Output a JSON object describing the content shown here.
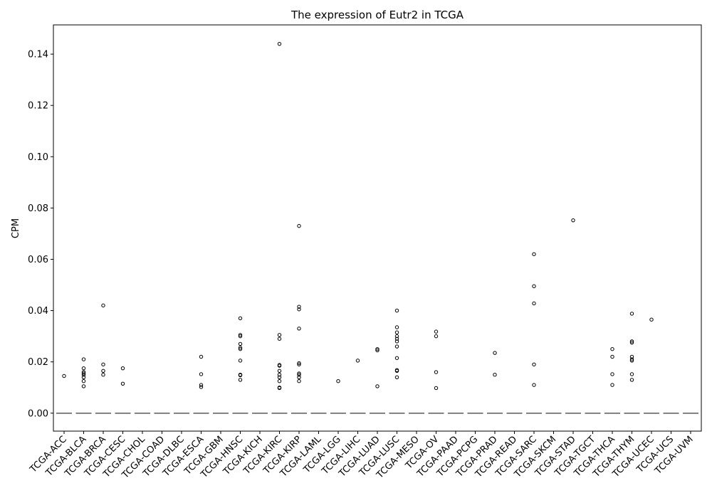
{
  "chart_data": {
    "type": "box",
    "title": "The expression of Eutr2 in TCGA",
    "xlabel": "",
    "ylabel": "CPM",
    "ylim": [
      -0.007,
      0.1514
    ],
    "yticks": [
      0.0,
      0.02,
      0.04,
      0.06,
      0.08,
      0.1,
      0.12,
      0.14
    ],
    "ytick_labels": [
      "0.00",
      "0.02",
      "0.04",
      "0.06",
      "0.08",
      "0.10",
      "0.12",
      "0.14"
    ],
    "grid": false,
    "median_color": "#666666",
    "outlier_color": "#000000",
    "categories": [
      "TCGA-ACC",
      "TCGA-BLCA",
      "TCGA-BRCA",
      "TCGA-CESC",
      "TCGA-CHOL",
      "TCGA-COAD",
      "TCGA-DLBC",
      "TCGA-ESCA",
      "TCGA-GBM",
      "TCGA-HNSC",
      "TCGA-KICH",
      "TCGA-KIRC",
      "TCGA-KIRP",
      "TCGA-LAML",
      "TCGA-LGG",
      "TCGA-LIHC",
      "TCGA-LUAD",
      "TCGA-LUSC",
      "TCGA-MESO",
      "TCGA-OV",
      "TCGA-PAAD",
      "TCGA-PCPG",
      "TCGA-PRAD",
      "TCGA-READ",
      "TCGA-SARC",
      "TCGA-SKCM",
      "TCGA-STAD",
      "TCGA-TGCT",
      "TCGA-THCA",
      "TCGA-THYM",
      "TCGA-UCEC",
      "TCGA-UCS",
      "TCGA-UVM"
    ],
    "medians": [
      0,
      0,
      0,
      0,
      0,
      0,
      0,
      0,
      0,
      0,
      0,
      0,
      0,
      0,
      0,
      0,
      0,
      0,
      0,
      0,
      0,
      0,
      0,
      0,
      0,
      0,
      0,
      0,
      0,
      0,
      0,
      0,
      0
    ],
    "outliers": [
      [
        0.0145
      ],
      [
        0.021,
        0.0175,
        0.016,
        0.0155,
        0.015,
        0.014,
        0.0125,
        0.0105
      ],
      [
        0.042,
        0.019,
        0.0165,
        0.015
      ],
      [
        0.0175,
        0.0115
      ],
      [],
      [],
      [],
      [
        0.022,
        0.0152,
        0.011,
        0.0102
      ],
      [],
      [
        0.037,
        0.0305,
        0.03,
        0.027,
        0.0255,
        0.025,
        0.0205,
        0.015,
        0.0148,
        0.013
      ],
      [],
      [
        0.144,
        0.0305,
        0.029,
        0.0188,
        0.0185,
        0.0165,
        0.015,
        0.014,
        0.0125,
        0.01,
        0.0098
      ],
      [
        0.073,
        0.0415,
        0.0405,
        0.033,
        0.0195,
        0.019,
        0.0155,
        0.015,
        0.014,
        0.0125
      ],
      [],
      [
        0.0125
      ],
      [
        0.0205
      ],
      [
        0.025,
        0.0245,
        0.0105
      ],
      [
        0.04,
        0.0335,
        0.0315,
        0.03,
        0.029,
        0.028,
        0.026,
        0.0215,
        0.0168,
        0.0165,
        0.014
      ],
      [],
      [
        0.0318,
        0.03,
        0.016,
        0.0098
      ],
      [],
      [],
      [
        0.0235,
        0.015
      ],
      [],
      [
        0.062,
        0.0495,
        0.0428,
        0.019,
        0.011
      ],
      [],
      [
        0.0752
      ],
      [],
      [
        0.025,
        0.022,
        0.0152,
        0.011
      ],
      [
        0.0388,
        0.028,
        0.0275,
        0.022,
        0.021,
        0.0205,
        0.0152,
        0.013
      ],
      [
        0.0365
      ],
      [],
      []
    ]
  }
}
